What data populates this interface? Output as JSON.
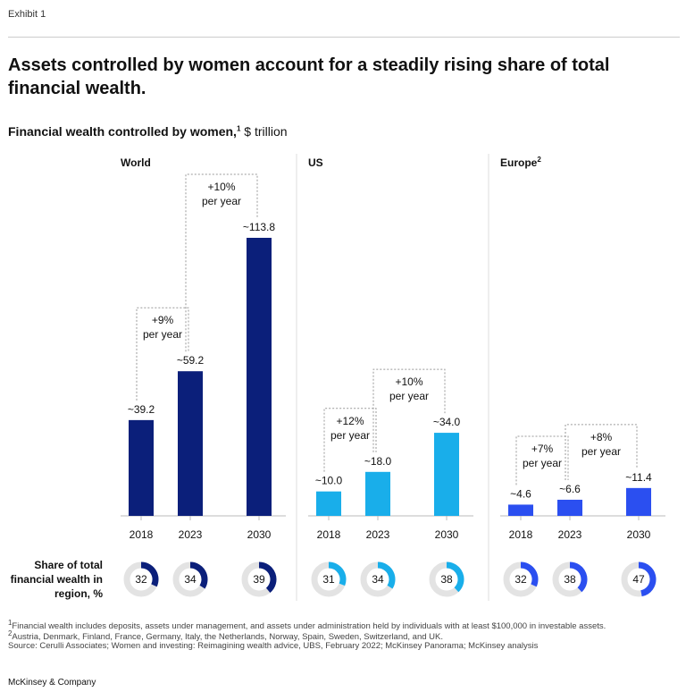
{
  "exhibit": "Exhibit 1",
  "title": "Assets controlled by women account for a steadily rising share of total financial wealth.",
  "subtitle": {
    "text": "Financial wealth controlled by women,",
    "note": "1",
    "unit": "$ trillion"
  },
  "share_label": "Share of total financial wealth in region, %",
  "chart_data": [
    {
      "type": "bar",
      "title": "World",
      "categories": [
        "2018",
        "2023",
        "2030"
      ],
      "values": [
        39.2,
        59.2,
        113.8
      ],
      "value_labels": [
        "~39.2",
        "~59.2",
        "~113.8"
      ],
      "color": "#0b1f7a",
      "growth": [
        {
          "rate": "+9%",
          "period": "per year"
        },
        {
          "rate": "+10%",
          "period": "per year"
        }
      ],
      "share_of_region": {
        "values": [
          32,
          34,
          39
        ]
      }
    },
    {
      "type": "bar",
      "title": "US",
      "categories": [
        "2018",
        "2023",
        "2030"
      ],
      "values": [
        10.0,
        18.0,
        34.0
      ],
      "value_labels": [
        "~10.0",
        "~18.0",
        "~34.0"
      ],
      "color": "#19aeea",
      "growth": [
        {
          "rate": "+12%",
          "period": "per year"
        },
        {
          "rate": "+10%",
          "period": "per year"
        }
      ],
      "share_of_region": {
        "values": [
          31,
          34,
          38
        ]
      }
    },
    {
      "type": "bar",
      "title": "Europe",
      "title_note": "2",
      "categories": [
        "2018",
        "2023",
        "2030"
      ],
      "values": [
        4.6,
        6.6,
        11.4
      ],
      "value_labels": [
        "~4.6",
        "~6.6",
        "~11.4"
      ],
      "color": "#2b4ff0",
      "growth": [
        {
          "rate": "+7%",
          "period": "per year"
        },
        {
          "rate": "+8%",
          "period": "per year"
        }
      ],
      "share_of_region": {
        "values": [
          32,
          38,
          47
        ]
      }
    }
  ],
  "footnotes": [
    {
      "marker": "1",
      "text": "Financial wealth includes deposits, assets under management, and assets under administration held by individuals with at least $100,000 in investable assets."
    },
    {
      "marker": "2",
      "text": "Austria, Denmark, Finland, France, Germany, Italy, the Netherlands, Norway, Spain, Sweden, Switzerland, and UK."
    }
  ],
  "source": "Source: Cerulli Associates; Women and investing: Reimagining wealth advice, UBS, February 2022; McKinsey Panorama; McKinsey analysis",
  "brand": "McKinsey & Company"
}
